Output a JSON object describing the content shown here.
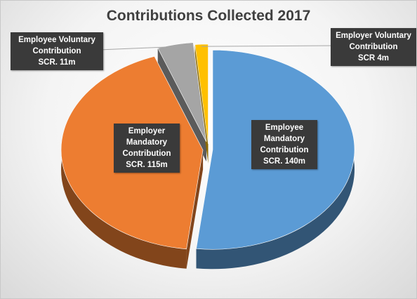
{
  "chart_data": {
    "type": "pie",
    "title": "Contributions Collected 2017",
    "categories": [
      "Employee Mandatory Contribution",
      "Employer Mandatory Contribution",
      "Employee Voluntary Contribution",
      "Employer Voluntary Contribution"
    ],
    "values": [
      140,
      115,
      11,
      4
    ],
    "value_labels": [
      "SCR. 140m",
      "SCR. 115m",
      "SCR. 11m",
      "SCR 4m"
    ],
    "colors": [
      "#5b9bd5",
      "#ed7d31",
      "#a5a5a5",
      "#ffc000"
    ]
  }
}
